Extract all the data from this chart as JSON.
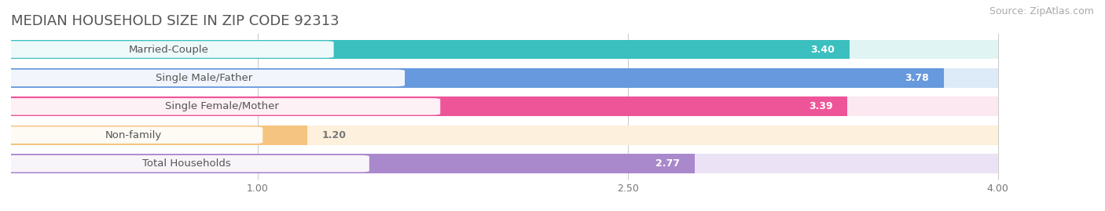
{
  "title": "MEDIAN HOUSEHOLD SIZE IN ZIP CODE 92313",
  "source": "Source: ZipAtlas.com",
  "categories": [
    "Married-Couple",
    "Single Male/Father",
    "Single Female/Mother",
    "Non-family",
    "Total Households"
  ],
  "values": [
    3.4,
    3.78,
    3.39,
    1.2,
    2.77
  ],
  "bar_colors": [
    "#3bbfbf",
    "#6699dd",
    "#ee5599",
    "#f5c480",
    "#aa88cc"
  ],
  "bar_bg_colors": [
    "#e0f4f4",
    "#ddeaf8",
    "#fce8f0",
    "#fdf0dc",
    "#ece2f5"
  ],
  "label_text_colors": [
    "#3bbfbf",
    "#5588cc",
    "#dd4488",
    "#cc9944",
    "#9977bb"
  ],
  "value_labels": [
    "3.40",
    "3.78",
    "3.39",
    "1.20",
    "2.77"
  ],
  "xlim": [
    0,
    4.3
  ],
  "xmin": 0,
  "xmax": 4.0,
  "xticks": [
    1.0,
    2.5,
    4.0
  ],
  "xtick_labels": [
    "1.00",
    "2.50",
    "4.00"
  ],
  "title_fontsize": 13,
  "source_fontsize": 9,
  "label_fontsize": 9.5,
  "value_fontsize": 9,
  "tick_fontsize": 9,
  "background_color": "#ffffff",
  "row_bg_color": "#f0f0f0"
}
